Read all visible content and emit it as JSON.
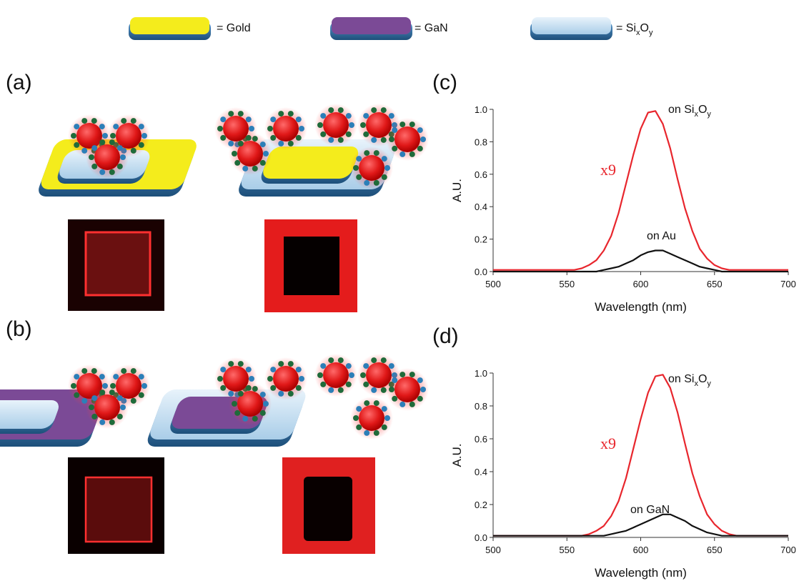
{
  "legend": [
    {
      "label": "= Gold"
    },
    {
      "label": "= GaN"
    },
    {
      "label": "= Si",
      "sub1": "x",
      "mid": "O",
      "sub2": "y"
    }
  ],
  "panels": [
    "(a)",
    "(b)",
    "(c)",
    "(d)"
  ],
  "chart_data": [
    {
      "type": "line",
      "xlabel": "Wavelength (nm)",
      "ylabel": "A.U.",
      "annotations": [
        {
          "text": "on Si",
          "sub1": "x",
          "mid": "O",
          "sub2": "y"
        },
        {
          "text": "x9"
        },
        {
          "text": "on Au"
        }
      ],
      "x": [
        500,
        505,
        510,
        515,
        520,
        525,
        530,
        535,
        540,
        545,
        550,
        555,
        560,
        565,
        570,
        575,
        580,
        585,
        590,
        595,
        600,
        605,
        610,
        615,
        620,
        625,
        630,
        635,
        640,
        645,
        650,
        655,
        660,
        665,
        670,
        675,
        680,
        685,
        690,
        695,
        700
      ],
      "series": [
        {
          "color": "#e8262d",
          "values": [
            0.01,
            0.01,
            0.01,
            0.01,
            0.01,
            0.01,
            0.01,
            0.01,
            0.01,
            0.01,
            0.01,
            0.01,
            0.02,
            0.04,
            0.07,
            0.13,
            0.22,
            0.36,
            0.54,
            0.72,
            0.88,
            0.98,
            0.99,
            0.91,
            0.76,
            0.57,
            0.39,
            0.25,
            0.14,
            0.08,
            0.04,
            0.02,
            0.01,
            0.01,
            0.01,
            0.01,
            0.01,
            0.01,
            0.01,
            0.01,
            0.01
          ]
        },
        {
          "color": "#111111",
          "values": [
            0,
            0,
            0,
            0,
            0,
            0,
            0,
            0,
            0,
            0,
            0,
            0,
            0,
            0,
            0,
            0.01,
            0.02,
            0.03,
            0.05,
            0.07,
            0.1,
            0.12,
            0.13,
            0.13,
            0.11,
            0.09,
            0.07,
            0.05,
            0.03,
            0.02,
            0.01,
            0,
            0,
            0,
            0,
            0,
            0,
            0,
            0,
            0,
            0
          ]
        }
      ],
      "xlim": [
        500,
        700
      ],
      "ylim": [
        0,
        1
      ],
      "xticks": [
        500,
        550,
        600,
        650,
        700
      ],
      "yticks": [
        {
          "value": 0,
          "label": "0.0"
        },
        0.2,
        0.4,
        0.6,
        0.8,
        {
          "value": 1,
          "label": "1.0"
        }
      ]
    },
    {
      "type": "line",
      "xlabel": "Wavelength (nm)",
      "ylabel": "A.U.",
      "annotations": [
        {
          "text": "on Si",
          "sub1": "x",
          "mid": "O",
          "sub2": "y"
        },
        {
          "text": "x9"
        },
        {
          "text": "on GaN"
        }
      ],
      "x": [
        500,
        505,
        510,
        515,
        520,
        525,
        530,
        535,
        540,
        545,
        550,
        555,
        560,
        565,
        570,
        575,
        580,
        585,
        590,
        595,
        600,
        605,
        610,
        615,
        620,
        625,
        630,
        635,
        640,
        645,
        650,
        655,
        660,
        665,
        670,
        675,
        680,
        685,
        690,
        695,
        700
      ],
      "series": [
        {
          "color": "#e8262d",
          "values": [
            0.01,
            0.01,
            0.01,
            0.01,
            0.01,
            0.01,
            0.01,
            0.01,
            0.01,
            0.01,
            0.01,
            0.01,
            0.01,
            0.02,
            0.04,
            0.07,
            0.13,
            0.22,
            0.36,
            0.54,
            0.72,
            0.88,
            0.98,
            0.99,
            0.91,
            0.76,
            0.57,
            0.39,
            0.25,
            0.14,
            0.08,
            0.04,
            0.02,
            0.01,
            0.01,
            0.01,
            0.01,
            0.01,
            0.01,
            0.01,
            0.01
          ]
        },
        {
          "color": "#111111",
          "values": [
            0.01,
            0.01,
            0.01,
            0.01,
            0.01,
            0.01,
            0.01,
            0.01,
            0.01,
            0.01,
            0.01,
            0.01,
            0.01,
            0.01,
            0.01,
            0.01,
            0.02,
            0.03,
            0.04,
            0.06,
            0.08,
            0.1,
            0.12,
            0.14,
            0.14,
            0.12,
            0.1,
            0.07,
            0.05,
            0.03,
            0.02,
            0.01,
            0.01,
            0.01,
            0.01,
            0.01,
            0.01,
            0.01,
            0.01,
            0.01,
            0.01
          ]
        }
      ],
      "xlim": [
        500,
        700
      ],
      "ylim": [
        0,
        1
      ],
      "xticks": [
        500,
        550,
        600,
        650,
        700
      ],
      "yticks": [
        {
          "value": 0,
          "label": "0.0"
        },
        0.2,
        0.4,
        0.6,
        0.8,
        {
          "value": 1,
          "label": "1.0"
        }
      ]
    }
  ]
}
